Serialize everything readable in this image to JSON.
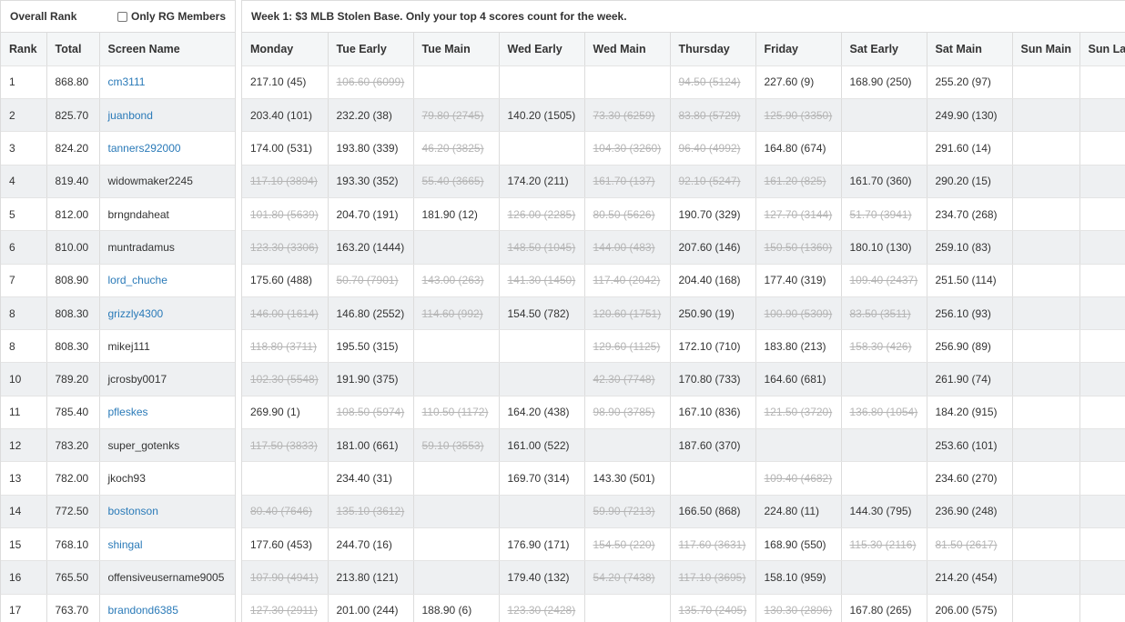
{
  "left_header": {
    "title": "Overall Rank",
    "checkbox_label": "Only RG Members"
  },
  "right_header": {
    "title": "Week 1: $3 MLB Stolen Base. Only your top 4 scores count for the week."
  },
  "left_columns": [
    "Rank",
    "Total",
    "Screen Name"
  ],
  "day_columns": [
    "Monday",
    "Tue Early",
    "Tue Main",
    "Wed Early",
    "Wed Main",
    "Thursday",
    "Friday",
    "Sat Early",
    "Sat Main",
    "Sun Main",
    "Sun La"
  ],
  "colors": {
    "link": "#2a7ab8",
    "strike": "#b5b5b5",
    "zebra": "#eef0f2",
    "header_bg": "#f4f6f7"
  },
  "rows": [
    {
      "rank": "1",
      "total": "868.80",
      "name": "cm3111",
      "link": true,
      "scores": [
        {
          "t": "217.10 (45)"
        },
        {
          "t": "106.60 (6099)",
          "s": true
        },
        {
          "t": ""
        },
        {
          "t": ""
        },
        {
          "t": ""
        },
        {
          "t": "94.50 (5124)",
          "s": true
        },
        {
          "t": "227.60 (9)"
        },
        {
          "t": "168.90 (250)"
        },
        {
          "t": "255.20 (97)"
        },
        {
          "t": ""
        },
        {
          "t": ""
        }
      ]
    },
    {
      "rank": "2",
      "total": "825.70",
      "name": "juanbond",
      "link": true,
      "scores": [
        {
          "t": "203.40 (101)"
        },
        {
          "t": "232.20 (38)"
        },
        {
          "t": "79.80 (2745)",
          "s": true
        },
        {
          "t": "140.20 (1505)"
        },
        {
          "t": "73.30 (6259)",
          "s": true
        },
        {
          "t": "83.80 (5729)",
          "s": true
        },
        {
          "t": "125.90 (3350)",
          "s": true
        },
        {
          "t": ""
        },
        {
          "t": "249.90 (130)"
        },
        {
          "t": ""
        },
        {
          "t": ""
        }
      ]
    },
    {
      "rank": "3",
      "total": "824.20",
      "name": "tanners292000",
      "link": true,
      "scores": [
        {
          "t": "174.00 (531)"
        },
        {
          "t": "193.80 (339)"
        },
        {
          "t": "46.20 (3825)",
          "s": true
        },
        {
          "t": ""
        },
        {
          "t": "104.30 (3260)",
          "s": true
        },
        {
          "t": "96.40 (4992)",
          "s": true
        },
        {
          "t": "164.80 (674)"
        },
        {
          "t": ""
        },
        {
          "t": "291.60 (14)"
        },
        {
          "t": ""
        },
        {
          "t": ""
        }
      ]
    },
    {
      "rank": "4",
      "total": "819.40",
      "name": "widowmaker2245",
      "link": false,
      "scores": [
        {
          "t": "117.10 (3894)",
          "s": true
        },
        {
          "t": "193.30 (352)"
        },
        {
          "t": "55.40 (3665)",
          "s": true
        },
        {
          "t": "174.20 (211)"
        },
        {
          "t": "161.70 (137)",
          "s": true
        },
        {
          "t": "92.10 (5247)",
          "s": true
        },
        {
          "t": "161.20 (825)",
          "s": true
        },
        {
          "t": "161.70 (360)"
        },
        {
          "t": "290.20 (15)"
        },
        {
          "t": ""
        },
        {
          "t": ""
        }
      ]
    },
    {
      "rank": "5",
      "total": "812.00",
      "name": "brngndaheat",
      "link": false,
      "scores": [
        {
          "t": "101.80 (5639)",
          "s": true
        },
        {
          "t": "204.70 (191)"
        },
        {
          "t": "181.90 (12)"
        },
        {
          "t": "126.00 (2285)",
          "s": true
        },
        {
          "t": "80.50 (5626)",
          "s": true
        },
        {
          "t": "190.70 (329)"
        },
        {
          "t": "127.70 (3144)",
          "s": true
        },
        {
          "t": "51.70 (3941)",
          "s": true
        },
        {
          "t": "234.70 (268)"
        },
        {
          "t": ""
        },
        {
          "t": ""
        }
      ]
    },
    {
      "rank": "6",
      "total": "810.00",
      "name": "muntradamus",
      "link": false,
      "scores": [
        {
          "t": "123.30 (3306)",
          "s": true
        },
        {
          "t": "163.20 (1444)"
        },
        {
          "t": ""
        },
        {
          "t": "148.50 (1045)",
          "s": true
        },
        {
          "t": "144.00 (483)",
          "s": true
        },
        {
          "t": "207.60 (146)"
        },
        {
          "t": "150.50 (1360)",
          "s": true
        },
        {
          "t": "180.10 (130)"
        },
        {
          "t": "259.10 (83)"
        },
        {
          "t": ""
        },
        {
          "t": ""
        }
      ]
    },
    {
      "rank": "7",
      "total": "808.90",
      "name": "lord_chuche",
      "link": true,
      "scores": [
        {
          "t": "175.60 (488)"
        },
        {
          "t": "50.70 (7901)",
          "s": true
        },
        {
          "t": "143.00 (263)",
          "s": true
        },
        {
          "t": "141.30 (1450)",
          "s": true
        },
        {
          "t": "117.40 (2042)",
          "s": true
        },
        {
          "t": "204.40 (168)"
        },
        {
          "t": "177.40 (319)"
        },
        {
          "t": "109.40 (2437)",
          "s": true
        },
        {
          "t": "251.50 (114)"
        },
        {
          "t": ""
        },
        {
          "t": ""
        }
      ]
    },
    {
      "rank": "8",
      "total": "808.30",
      "name": "grizzly4300",
      "link": true,
      "scores": [
        {
          "t": "146.00 (1614)",
          "s": true
        },
        {
          "t": "146.80 (2552)"
        },
        {
          "t": "114.60 (992)",
          "s": true
        },
        {
          "t": "154.50 (782)"
        },
        {
          "t": "120.60 (1751)",
          "s": true
        },
        {
          "t": "250.90 (19)"
        },
        {
          "t": "100.90 (5309)",
          "s": true
        },
        {
          "t": "83.50 (3511)",
          "s": true
        },
        {
          "t": "256.10 (93)"
        },
        {
          "t": ""
        },
        {
          "t": ""
        }
      ]
    },
    {
      "rank": "8",
      "total": "808.30",
      "name": "mikej111",
      "link": false,
      "scores": [
        {
          "t": "118.80 (3711)",
          "s": true
        },
        {
          "t": "195.50 (315)"
        },
        {
          "t": ""
        },
        {
          "t": ""
        },
        {
          "t": "129.60 (1125)",
          "s": true
        },
        {
          "t": "172.10 (710)"
        },
        {
          "t": "183.80 (213)"
        },
        {
          "t": "158.30 (426)",
          "s": true
        },
        {
          "t": "256.90 (89)"
        },
        {
          "t": ""
        },
        {
          "t": ""
        }
      ]
    },
    {
      "rank": "10",
      "total": "789.20",
      "name": "jcrosby0017",
      "link": false,
      "scores": [
        {
          "t": "102.30 (5548)",
          "s": true
        },
        {
          "t": "191.90 (375)"
        },
        {
          "t": ""
        },
        {
          "t": ""
        },
        {
          "t": "42.30 (7748)",
          "s": true
        },
        {
          "t": "170.80 (733)"
        },
        {
          "t": "164.60 (681)"
        },
        {
          "t": ""
        },
        {
          "t": "261.90 (74)"
        },
        {
          "t": ""
        },
        {
          "t": ""
        }
      ]
    },
    {
      "rank": "11",
      "total": "785.40",
      "name": "pfleskes",
      "link": true,
      "scores": [
        {
          "t": "269.90 (1)"
        },
        {
          "t": "108.50 (5974)",
          "s": true
        },
        {
          "t": "110.50 (1172)",
          "s": true
        },
        {
          "t": "164.20 (438)"
        },
        {
          "t": "98.90 (3785)",
          "s": true
        },
        {
          "t": "167.10 (836)"
        },
        {
          "t": "121.50 (3720)",
          "s": true
        },
        {
          "t": "136.80 (1054)",
          "s": true
        },
        {
          "t": "184.20 (915)"
        },
        {
          "t": ""
        },
        {
          "t": ""
        }
      ]
    },
    {
      "rank": "12",
      "total": "783.20",
      "name": "super_gotenks",
      "link": false,
      "scores": [
        {
          "t": "117.50 (3833)",
          "s": true
        },
        {
          "t": "181.00 (661)"
        },
        {
          "t": "59.10 (3553)",
          "s": true
        },
        {
          "t": "161.00 (522)"
        },
        {
          "t": ""
        },
        {
          "t": "187.60 (370)"
        },
        {
          "t": ""
        },
        {
          "t": ""
        },
        {
          "t": "253.60 (101)"
        },
        {
          "t": ""
        },
        {
          "t": ""
        }
      ]
    },
    {
      "rank": "13",
      "total": "782.00",
      "name": "jkoch93",
      "link": false,
      "scores": [
        {
          "t": ""
        },
        {
          "t": "234.40 (31)"
        },
        {
          "t": ""
        },
        {
          "t": "169.70 (314)"
        },
        {
          "t": "143.30 (501)"
        },
        {
          "t": ""
        },
        {
          "t": "109.40 (4682)",
          "s": true
        },
        {
          "t": ""
        },
        {
          "t": "234.60 (270)"
        },
        {
          "t": ""
        },
        {
          "t": ""
        }
      ]
    },
    {
      "rank": "14",
      "total": "772.50",
      "name": "bostonson",
      "link": true,
      "scores": [
        {
          "t": "80.40 (7646)",
          "s": true
        },
        {
          "t": "135.10 (3612)",
          "s": true
        },
        {
          "t": ""
        },
        {
          "t": ""
        },
        {
          "t": "59.90 (7213)",
          "s": true
        },
        {
          "t": "166.50 (868)"
        },
        {
          "t": "224.80 (11)"
        },
        {
          "t": "144.30 (795)"
        },
        {
          "t": "236.90 (248)"
        },
        {
          "t": ""
        },
        {
          "t": ""
        }
      ]
    },
    {
      "rank": "15",
      "total": "768.10",
      "name": "shingal",
      "link": true,
      "scores": [
        {
          "t": "177.60 (453)"
        },
        {
          "t": "244.70 (16)"
        },
        {
          "t": ""
        },
        {
          "t": "176.90 (171)"
        },
        {
          "t": "154.50 (220)",
          "s": true
        },
        {
          "t": "117.60 (3631)",
          "s": true
        },
        {
          "t": "168.90 (550)"
        },
        {
          "t": "115.30 (2116)",
          "s": true
        },
        {
          "t": "81.50 (2617)",
          "s": true
        },
        {
          "t": ""
        },
        {
          "t": ""
        }
      ]
    },
    {
      "rank": "16",
      "total": "765.50",
      "name": "offensiveusername9005",
      "link": false,
      "scores": [
        {
          "t": "107.90 (4941)",
          "s": true
        },
        {
          "t": "213.80 (121)"
        },
        {
          "t": ""
        },
        {
          "t": "179.40 (132)"
        },
        {
          "t": "54.20 (7438)",
          "s": true
        },
        {
          "t": "117.10 (3695)",
          "s": true
        },
        {
          "t": "158.10 (959)"
        },
        {
          "t": ""
        },
        {
          "t": "214.20 (454)"
        },
        {
          "t": ""
        },
        {
          "t": ""
        }
      ]
    },
    {
      "rank": "17",
      "total": "763.70",
      "name": "brandond6385",
      "link": true,
      "scores": [
        {
          "t": "127.30 (2911)",
          "s": true
        },
        {
          "t": "201.00 (244)"
        },
        {
          "t": "188.90 (6)"
        },
        {
          "t": "123.30 (2428)",
          "s": true
        },
        {
          "t": ""
        },
        {
          "t": "135.70 (2405)",
          "s": true
        },
        {
          "t": "130.30 (2896)",
          "s": true
        },
        {
          "t": "167.80 (265)"
        },
        {
          "t": "206.00 (575)"
        },
        {
          "t": ""
        },
        {
          "t": ""
        }
      ]
    }
  ]
}
